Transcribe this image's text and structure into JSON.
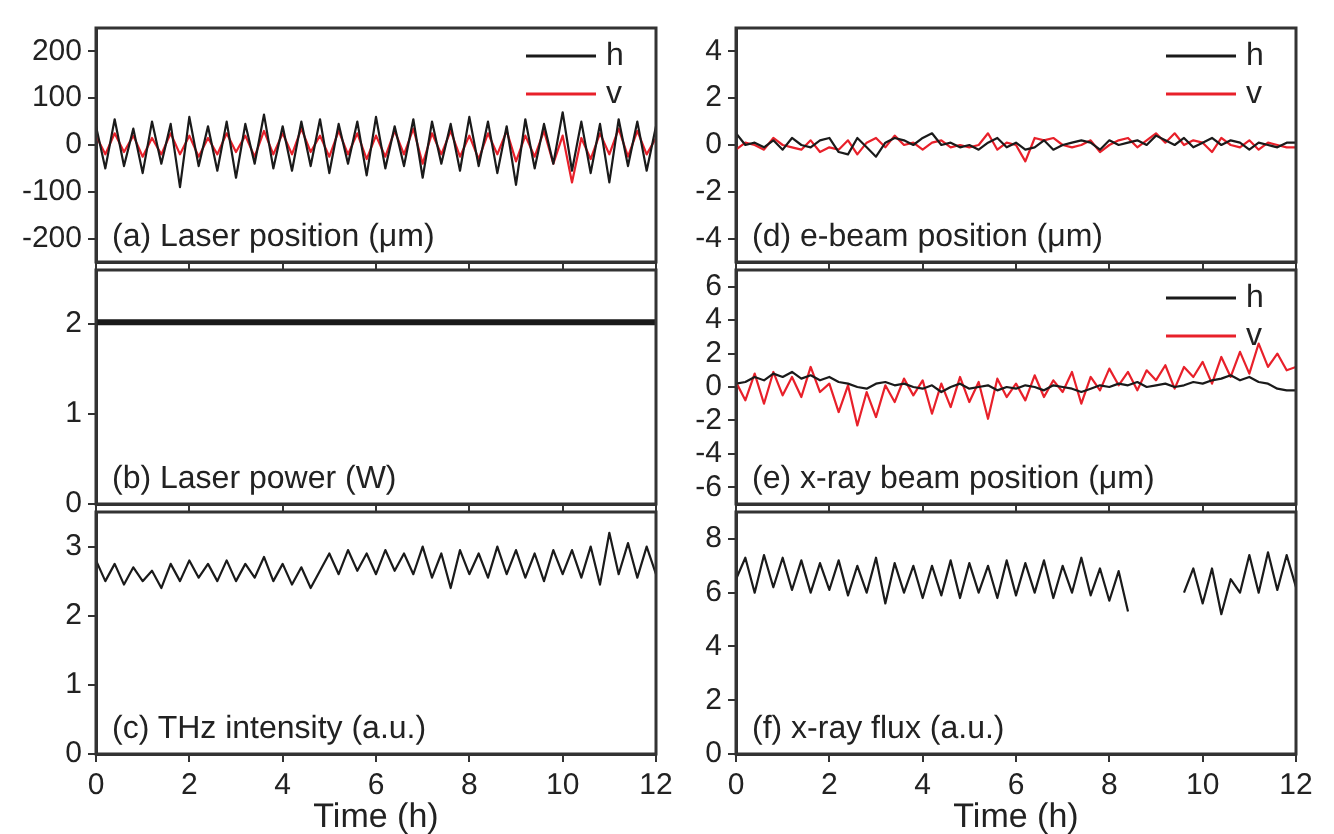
{
  "chart_data": [
    {
      "type": "line",
      "annotations": [
        "(a) Laser position (μm)"
      ],
      "legend": "top right",
      "tick_labels": "y",
      "xlim": [
        0,
        12
      ],
      "xticks": [
        0,
        2,
        4,
        6,
        8,
        10,
        12
      ],
      "ylim": [
        -250,
        250
      ],
      "yticks": [
        -200,
        -100,
        0,
        100,
        200
      ],
      "x": [
        0,
        0.2,
        0.4,
        0.6,
        0.8,
        1,
        1.2,
        1.4,
        1.6,
        1.8,
        2,
        2.2,
        2.4,
        2.6,
        2.8,
        3,
        3.2,
        3.4,
        3.6,
        3.8,
        4,
        4.2,
        4.4,
        4.6,
        4.8,
        5,
        5.2,
        5.4,
        5.6,
        5.8,
        6,
        6.2,
        6.4,
        6.6,
        6.8,
        7,
        7.2,
        7.4,
        7.6,
        7.8,
        8,
        8.2,
        8.4,
        8.6,
        8.8,
        9,
        9.2,
        9.4,
        9.6,
        9.8,
        10,
        10.2,
        10.4,
        10.6,
        10.8,
        11,
        11.2,
        11.4,
        11.6,
        11.8,
        12
      ],
      "series": [
        {
          "name": "h",
          "color": "#1a1a1a",
          "values": [
            40,
            -50,
            55,
            -45,
            35,
            -60,
            50,
            -40,
            45,
            -90,
            60,
            -45,
            40,
            -55,
            50,
            -70,
            45,
            -40,
            65,
            -50,
            40,
            -55,
            50,
            -45,
            55,
            -60,
            45,
            -40,
            50,
            -65,
            60,
            -50,
            40,
            -45,
            55,
            -70,
            50,
            -40,
            45,
            -55,
            60,
            -45,
            50,
            -60,
            40,
            -85,
            55,
            -50,
            45,
            -40,
            70,
            -55,
            50,
            -60,
            45,
            -80,
            55,
            -45,
            50,
            -55,
            40
          ]
        },
        {
          "name": "v",
          "color": "#e8202a",
          "values": [
            20,
            -20,
            25,
            -15,
            20,
            -25,
            15,
            -20,
            25,
            -20,
            20,
            -25,
            15,
            -20,
            25,
            -15,
            20,
            -25,
            30,
            -20,
            25,
            -20,
            35,
            -15,
            20,
            -25,
            30,
            -20,
            25,
            -30,
            20,
            -25,
            30,
            -20,
            35,
            -40,
            25,
            -20,
            30,
            -25,
            20,
            -30,
            25,
            -20,
            30,
            -35,
            20,
            -25,
            30,
            -40,
            20,
            -80,
            15,
            -30,
            25,
            -20,
            35,
            -25,
            30,
            -20,
            15
          ]
        }
      ]
    },
    {
      "type": "line",
      "annotations": [
        "(b) Laser power (W)"
      ],
      "tick_labels": "y",
      "xlim": [
        0,
        12
      ],
      "xticks": [
        0,
        2,
        4,
        6,
        8,
        10,
        12
      ],
      "ylim": [
        0,
        2.6
      ],
      "yticks": [
        0,
        1,
        2
      ],
      "x": [
        0,
        12
      ],
      "series": [
        {
          "color": "#1a1a1a",
          "values": [
            2.02,
            2.02
          ]
        }
      ]
    },
    {
      "type": "line",
      "annotations": [
        "(c) THz intensity (a.u.)"
      ],
      "xlabel": "Time (h)",
      "xlim": [
        0,
        12
      ],
      "xticks": [
        0,
        2,
        4,
        6,
        8,
        10,
        12
      ],
      "ylim": [
        0,
        3.5
      ],
      "yticks": [
        0,
        1,
        2,
        3
      ],
      "x": [
        0,
        0.2,
        0.4,
        0.6,
        0.8,
        1,
        1.2,
        1.4,
        1.6,
        1.8,
        2,
        2.2,
        2.4,
        2.6,
        2.8,
        3,
        3.2,
        3.4,
        3.6,
        3.8,
        4,
        4.2,
        4.4,
        4.6,
        4.8,
        5,
        5.2,
        5.4,
        5.6,
        5.8,
        6,
        6.2,
        6.4,
        6.6,
        6.8,
        7,
        7.2,
        7.4,
        7.6,
        7.8,
        8,
        8.2,
        8.4,
        8.6,
        8.8,
        9,
        9.2,
        9.4,
        9.6,
        9.8,
        10,
        10.2,
        10.4,
        10.6,
        10.8,
        11,
        11.2,
        11.4,
        11.6,
        11.8,
        12
      ],
      "series": [
        {
          "color": "#1a1a1a",
          "values": [
            2.8,
            2.5,
            2.75,
            2.45,
            2.7,
            2.5,
            2.65,
            2.4,
            2.75,
            2.5,
            2.8,
            2.55,
            2.75,
            2.5,
            2.8,
            2.5,
            2.75,
            2.55,
            2.85,
            2.5,
            2.75,
            2.45,
            2.7,
            2.4,
            2.65,
            2.9,
            2.6,
            2.95,
            2.65,
            2.9,
            2.6,
            2.95,
            2.65,
            2.9,
            2.6,
            3.0,
            2.55,
            2.9,
            2.4,
            2.95,
            2.6,
            2.9,
            2.55,
            3.0,
            2.6,
            2.95,
            2.55,
            2.9,
            2.5,
            2.95,
            2.6,
            2.95,
            2.55,
            3.0,
            2.45,
            3.2,
            2.6,
            3.05,
            2.55,
            3.0,
            2.6
          ]
        }
      ]
    },
    {
      "type": "line",
      "annotations": [
        "(d) e-beam position (μm)"
      ],
      "legend": "top right",
      "tick_labels": "y",
      "xlim": [
        0,
        12
      ],
      "xticks": [
        0,
        2,
        4,
        6,
        8,
        10,
        12
      ],
      "ylim": [
        -5,
        5
      ],
      "yticks": [
        -4,
        -2,
        0,
        2,
        4
      ],
      "x": [
        0,
        0.2,
        0.4,
        0.6,
        0.8,
        1,
        1.2,
        1.4,
        1.6,
        1.8,
        2,
        2.2,
        2.4,
        2.6,
        2.8,
        3,
        3.2,
        3.4,
        3.6,
        3.8,
        4,
        4.2,
        4.4,
        4.6,
        4.8,
        5,
        5.2,
        5.4,
        5.6,
        5.8,
        6,
        6.2,
        6.4,
        6.6,
        6.8,
        7,
        7.2,
        7.4,
        7.6,
        7.8,
        8,
        8.2,
        8.4,
        8.6,
        8.8,
        9,
        9.2,
        9.4,
        9.6,
        9.8,
        10,
        10.2,
        10.4,
        10.6,
        10.8,
        11,
        11.2,
        11.4,
        11.6,
        11.8,
        12
      ],
      "series": [
        {
          "name": "h",
          "color": "#1a1a1a",
          "values": [
            0.5,
            0,
            0.1,
            -0.1,
            0.2,
            -0.2,
            0.3,
            0,
            -0.1,
            0.2,
            0.3,
            -0.3,
            -0.4,
            0.3,
            -0.1,
            -0.5,
            0.1,
            0.3,
            0.2,
            0,
            0.3,
            0.5,
            0,
            0.1,
            -0.1,
            0,
            -0.2,
            0.1,
            0.3,
            -0.1,
            0.1,
            -0.2,
            -0.1,
            0.2,
            -0.2,
            0,
            0.1,
            0.2,
            0.1,
            -0.2,
            0.2,
            0,
            0.1,
            0.2,
            0,
            0.4,
            0.2,
            0,
            0.3,
            -0.1,
            0.1,
            0.3,
            0,
            0.2,
            0.1,
            -0.2,
            0.1,
            0,
            -0.1,
            0.1,
            0.1
          ]
        },
        {
          "name": "v",
          "color": "#e8202a",
          "values": [
            -0.2,
            0.1,
            0,
            -0.2,
            0.3,
            0,
            -0.1,
            -0.2,
            0.2,
            -0.3,
            -0.1,
            -0.2,
            0.2,
            -0.4,
            0.1,
            0.3,
            -0.1,
            0.4,
            0,
            0.1,
            -0.2,
            0.1,
            0.2,
            -0.1,
            0,
            -0.1,
            0,
            0.5,
            -0.2,
            0.1,
            0,
            -0.7,
            0.3,
            0.2,
            0.3,
            0,
            -0.1,
            0,
            0.2,
            -0.3,
            0,
            0.2,
            0.3,
            -0.1,
            0.2,
            0.5,
            0.1,
            0.5,
            0,
            0.2,
            0.1,
            -0.3,
            0.3,
            0,
            -0.1,
            0.2,
            -0.2,
            0.1,
            0,
            -0.1,
            -0.1
          ]
        }
      ]
    },
    {
      "type": "line",
      "annotations": [
        "(e) x-ray beam position (μm)"
      ],
      "legend": "top right",
      "tick_labels": "y",
      "xlim": [
        0,
        12
      ],
      "xticks": [
        0,
        2,
        4,
        6,
        8,
        10,
        12
      ],
      "ylim": [
        -7,
        7
      ],
      "yticks": [
        -6,
        -4,
        -2,
        0,
        2,
        4,
        6
      ],
      "x": [
        0,
        0.2,
        0.4,
        0.6,
        0.8,
        1,
        1.2,
        1.4,
        1.6,
        1.8,
        2,
        2.2,
        2.4,
        2.6,
        2.8,
        3,
        3.2,
        3.4,
        3.6,
        3.8,
        4,
        4.2,
        4.4,
        4.6,
        4.8,
        5,
        5.2,
        5.4,
        5.6,
        5.8,
        6,
        6.2,
        6.4,
        6.6,
        6.8,
        7,
        7.2,
        7.4,
        7.6,
        7.8,
        8,
        8.2,
        8.4,
        8.6,
        8.8,
        9,
        9.2,
        9.4,
        9.6,
        9.8,
        10,
        10.2,
        10.4,
        10.6,
        10.8,
        11,
        11.2,
        11.4,
        11.6,
        11.8,
        12
      ],
      "series": [
        {
          "name": "h",
          "color": "#1a1a1a",
          "values": [
            0.2,
            0.3,
            0.6,
            0.4,
            0.8,
            0.6,
            0.9,
            0.5,
            0.7,
            0.4,
            0.6,
            0.3,
            0.2,
            0,
            -0.1,
            0.2,
            0.3,
            0.1,
            0.2,
            0,
            -0.1,
            0.1,
            -0.3,
            0,
            0.2,
            -0.1,
            0,
            0.1,
            -0.2,
            0,
            -0.1,
            0.1,
            0,
            -0.2,
            0.1,
            0,
            -0.1,
            -0.3,
            -0.1,
            0.1,
            0,
            0.2,
            0.1,
            0.3,
            0,
            0.1,
            0.2,
            0,
            0.1,
            0.3,
            0.2,
            0.4,
            0.5,
            0.7,
            0.4,
            0.6,
            0.3,
            0.2,
            -0.1,
            -0.2,
            -0.2
          ]
        },
        {
          "name": "v",
          "color": "#e8202a",
          "values": [
            0.3,
            -0.8,
            0.8,
            -1.0,
            0.9,
            -0.5,
            0.6,
            -0.6,
            1.2,
            -0.3,
            0.2,
            -1.5,
            0.1,
            -2.3,
            -0.3,
            -1.8,
            0.1,
            -0.9,
            0.5,
            -0.5,
            0.4,
            -1.6,
            0.2,
            -1.2,
            0.6,
            -0.9,
            0.3,
            -1.9,
            0.5,
            -0.6,
            0.2,
            -0.8,
            0.7,
            -0.6,
            0.4,
            -0.3,
            0.9,
            -1.0,
            0.6,
            -0.2,
            1.1,
            0.1,
            0.9,
            -0.2,
            1.0,
            0.4,
            1.3,
            -0.1,
            1.2,
            0.6,
            1.5,
            0.2,
            1.8,
            0.6,
            2.1,
            0.8,
            2.6,
            1.2,
            2.0,
            1.0,
            1.2
          ]
        }
      ]
    },
    {
      "type": "line",
      "annotations": [
        "(f) x-ray flux (a.u.)"
      ],
      "xlabel": "Time (h)",
      "xlim": [
        0,
        12
      ],
      "xticks": [
        0,
        2,
        4,
        6,
        8,
        10,
        12
      ],
      "ylim": [
        0,
        9
      ],
      "yticks": [
        0,
        2,
        4,
        6,
        8
      ],
      "x": [
        0,
        0.2,
        0.4,
        0.6,
        0.8,
        1,
        1.2,
        1.4,
        1.6,
        1.8,
        2,
        2.2,
        2.4,
        2.6,
        2.8,
        3,
        3.2,
        3.4,
        3.6,
        3.8,
        4,
        4.2,
        4.4,
        4.6,
        4.8,
        5,
        5.2,
        5.4,
        5.6,
        5.8,
        6,
        6.2,
        6.4,
        6.6,
        6.8,
        7,
        7.2,
        7.4,
        7.6,
        7.8,
        8,
        8.2,
        8.4,
        8.6,
        8.8,
        9,
        9.2,
        9.4,
        9.6,
        9.8,
        10,
        10.2,
        10.4,
        10.6,
        10.8,
        11,
        11.2,
        11.4,
        11.6,
        11.8,
        12
      ],
      "series": [
        {
          "color": "#1a1a1a",
          "values": [
            6.5,
            7.3,
            6.0,
            7.4,
            6.2,
            7.3,
            6.1,
            7.2,
            6.0,
            7.1,
            6.1,
            7.2,
            5.9,
            7.0,
            6.0,
            7.3,
            5.6,
            7.1,
            6.0,
            7.0,
            5.8,
            7.0,
            5.9,
            7.2,
            5.8,
            7.1,
            6.0,
            7.0,
            5.8,
            7.2,
            5.9,
            7.1,
            6.0,
            7.2,
            5.8,
            7.0,
            6.0,
            7.3,
            5.9,
            6.9,
            5.7,
            6.8,
            5.3,
            null,
            null,
            null,
            null,
            null,
            6.0,
            6.9,
            5.6,
            6.9,
            5.2,
            6.5,
            6.0,
            7.4,
            6.0,
            7.5,
            6.1,
            7.4,
            6.2
          ]
        }
      ]
    }
  ]
}
